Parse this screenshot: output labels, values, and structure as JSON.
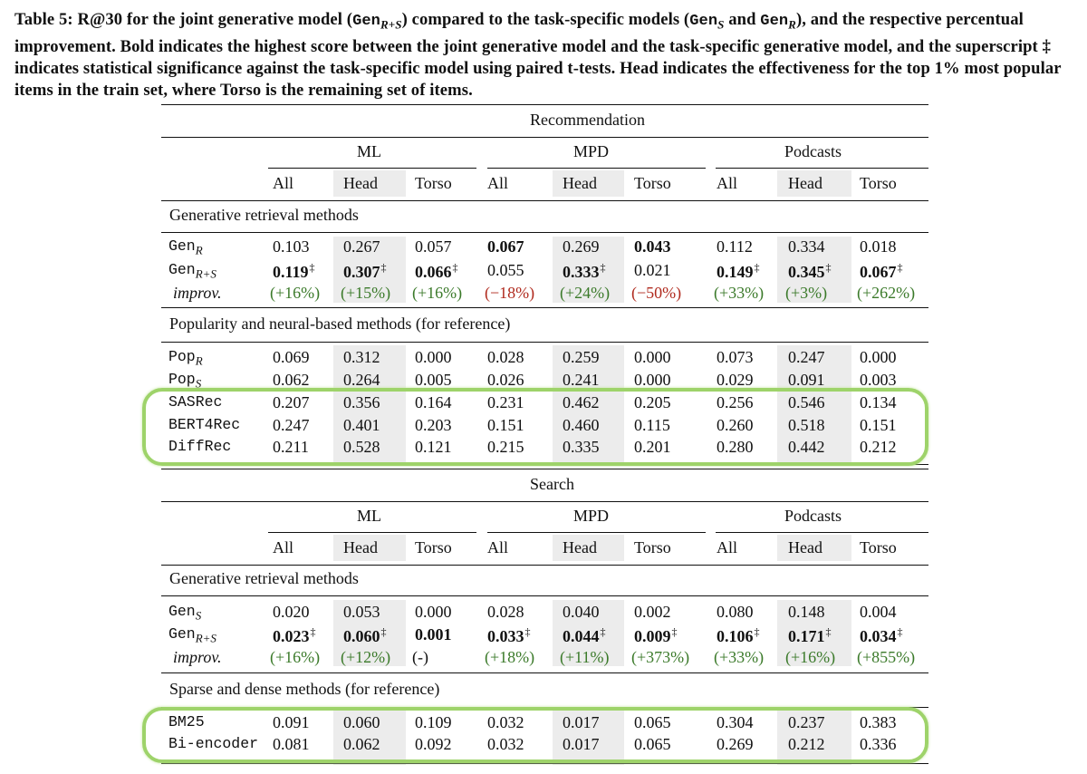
{
  "caption": {
    "label": "Table 5:",
    "text_a": " R@30 for the joint generative model (",
    "gen_rs": "Gen",
    "sub_rs": "R+S",
    "text_b": ") compared to the task-specific models (",
    "gen_s": "Gen",
    "sub_s": "S",
    "text_c": " and ",
    "gen_r": "Gen",
    "sub_r": "R",
    "text_d": "), and the respective percentual improvement. Bold indicates the highest score between the joint generative model and the task-specific generative model, and the superscript ‡ indicates statistical significance against the task-specific model using paired t-tests. Head indicates the effectiveness for the top 1% most popular items in the train set, where Torso is the remaining set of items."
  },
  "columns": {
    "datasets": [
      "ML",
      "MPD",
      "Podcasts"
    ],
    "subcols": [
      "All",
      "Head",
      "Torso",
      "All",
      "Head",
      "Torso",
      "All",
      "Head",
      "Torso"
    ]
  },
  "recommendation": {
    "title": "Recommendation",
    "group1": "Generative retrieval methods",
    "genR": {
      "base": "Gen",
      "sub": "R",
      "values": [
        "0.103",
        "0.267",
        "0.057",
        "0.067",
        "0.269",
        "0.043",
        "0.112",
        "0.334",
        "0.018"
      ]
    },
    "genRS": {
      "base": "Gen",
      "sub": "R+S",
      "values": [
        "0.119",
        "0.307",
        "0.066",
        "0.055",
        "0.333",
        "0.021",
        "0.149",
        "0.345",
        "0.067"
      ]
    },
    "improv": {
      "label": "improv.",
      "values": [
        "(+16%)",
        "(+15%)",
        "(+16%)",
        "(−18%)",
        "(+24%)",
        "(−50%)",
        "(+33%)",
        "(+3%)",
        "(+262%)"
      ]
    },
    "group2": "Popularity and neural-based methods (for reference)",
    "popR": {
      "base": "Pop",
      "sub": "R",
      "values": [
        "0.069",
        "0.312",
        "0.000",
        "0.028",
        "0.259",
        "0.000",
        "0.073",
        "0.247",
        "0.000"
      ]
    },
    "popS": {
      "base": "Pop",
      "sub": "S",
      "values": [
        "0.062",
        "0.264",
        "0.005",
        "0.026",
        "0.241",
        "0.000",
        "0.029",
        "0.091",
        "0.003"
      ]
    },
    "sasrec": {
      "name": "SASRec",
      "values": [
        "0.207",
        "0.356",
        "0.164",
        "0.231",
        "0.462",
        "0.205",
        "0.256",
        "0.546",
        "0.134"
      ]
    },
    "bert4rec": {
      "name": "BERT4Rec",
      "values": [
        "0.247",
        "0.401",
        "0.203",
        "0.151",
        "0.460",
        "0.115",
        "0.260",
        "0.518",
        "0.151"
      ]
    },
    "diffrec": {
      "name": "DiffRec",
      "values": [
        "0.211",
        "0.528",
        "0.121",
        "0.215",
        "0.335",
        "0.201",
        "0.280",
        "0.442",
        "0.212"
      ]
    }
  },
  "search": {
    "title": "Search",
    "group1": "Generative retrieval methods",
    "genS": {
      "base": "Gen",
      "sub": "S",
      "values": [
        "0.020",
        "0.053",
        "0.000",
        "0.028",
        "0.040",
        "0.002",
        "0.080",
        "0.148",
        "0.004"
      ]
    },
    "genRS": {
      "base": "Gen",
      "sub": "R+S",
      "values": [
        "0.023",
        "0.060",
        "0.001",
        "0.033",
        "0.044",
        "0.009",
        "0.106",
        "0.171",
        "0.034"
      ]
    },
    "improv": {
      "label": "improv.",
      "values": [
        "(+16%)",
        "(+12%)",
        "(-)",
        "(+18%)",
        "(+11%)",
        "(+373%)",
        "(+33%)",
        "(+16%)",
        "(+855%)"
      ]
    },
    "group2": "Sparse and dense methods (for reference)",
    "bm25": {
      "name": "BM25",
      "values": [
        "0.091",
        "0.060",
        "0.109",
        "0.032",
        "0.017",
        "0.065",
        "0.304",
        "0.237",
        "0.383"
      ]
    },
    "biencoder": {
      "name": "Bi-encoder",
      "values": [
        "0.081",
        "0.062",
        "0.092",
        "0.032",
        "0.017",
        "0.065",
        "0.269",
        "0.212",
        "0.336"
      ]
    }
  },
  "colors": {
    "positive": "#3b7a2a",
    "negative": "#b02a1e",
    "highlight": "#9ed36a"
  }
}
